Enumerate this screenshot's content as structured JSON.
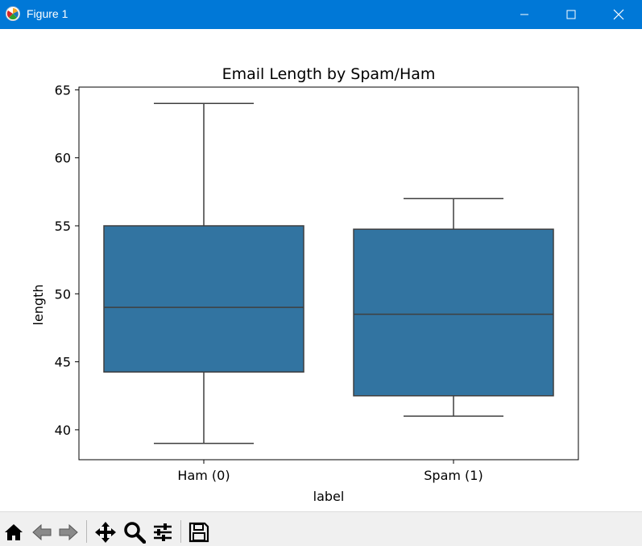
{
  "window": {
    "title": "Figure 1"
  },
  "title_icons": {
    "minimize": "minimize-icon",
    "maximize": "maximize-icon",
    "close": "close-icon"
  },
  "toolbar": {
    "buttons": [
      {
        "name": "home",
        "icon": "home-icon"
      },
      {
        "name": "back",
        "icon": "back-arrow-icon"
      },
      {
        "name": "forward",
        "icon": "forward-arrow-icon"
      },
      {
        "name": "pan",
        "icon": "pan-move-icon"
      },
      {
        "name": "zoom",
        "icon": "zoom-magnifier-icon"
      },
      {
        "name": "configure",
        "icon": "configure-subplots-icon"
      },
      {
        "name": "save",
        "icon": "save-floppy-icon"
      }
    ]
  },
  "colors": {
    "box_fill": "#3274a1",
    "line": "#3f3f3f",
    "titlebar": "#0078d7"
  },
  "chart_data": {
    "type": "box",
    "title": "Email Length by Spam/Ham",
    "xlabel": "label",
    "ylabel": "length",
    "ylim": [
      37.8,
      65.2
    ],
    "yticks": [
      40,
      45,
      50,
      55,
      60,
      65
    ],
    "categories": [
      "Ham (0)",
      "Spam (1)"
    ],
    "boxes": [
      {
        "category": "Ham (0)",
        "whisker_low": 39,
        "q1": 44.25,
        "median": 49,
        "q3": 55,
        "whisker_high": 64
      },
      {
        "category": "Spam (1)",
        "whisker_low": 41,
        "q1": 42.5,
        "median": 48.5,
        "q3": 54.75,
        "whisker_high": 57
      }
    ],
    "grid": false,
    "legend": "none"
  }
}
